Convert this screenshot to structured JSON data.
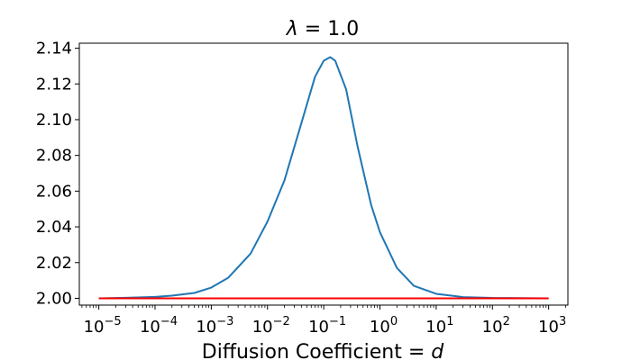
{
  "chart_data": {
    "type": "line",
    "title": "λ =  1.0",
    "title_symbol": "λ",
    "title_rest": " =  1.0",
    "xlabel": "Diffusion Coefficient = ",
    "xlabel_var": "d",
    "xscale": "log",
    "xlim": [
      4.5e-06,
      2200
    ],
    "ylim": [
      1.9962,
      2.1428
    ],
    "grid": false,
    "x_ticks": [
      {
        "value": 1e-05,
        "base": "10",
        "exp": "−5"
      },
      {
        "value": 0.0001,
        "base": "10",
        "exp": "−4"
      },
      {
        "value": 0.001,
        "base": "10",
        "exp": "−3"
      },
      {
        "value": 0.01,
        "base": "10",
        "exp": "−2"
      },
      {
        "value": 0.1,
        "base": "10",
        "exp": "−1"
      },
      {
        "value": 1,
        "base": "10",
        "exp": "0"
      },
      {
        "value": 10,
        "base": "10",
        "exp": "1"
      },
      {
        "value": 100,
        "base": "10",
        "exp": "2"
      },
      {
        "value": 1000,
        "base": "10",
        "exp": "3"
      }
    ],
    "y_ticks": [
      {
        "value": 2.0,
        "label": "2.00"
      },
      {
        "value": 2.02,
        "label": "2.02"
      },
      {
        "value": 2.04,
        "label": "2.04"
      },
      {
        "value": 2.06,
        "label": "2.06"
      },
      {
        "value": 2.08,
        "label": "2.08"
      },
      {
        "value": 2.1,
        "label": "2.10"
      },
      {
        "value": 2.12,
        "label": "2.12"
      },
      {
        "value": 2.14,
        "label": "2.14"
      }
    ],
    "series": [
      {
        "color": "#1f77b4",
        "points": [
          [
            1e-05,
            2.0
          ],
          [
            3e-05,
            2.0003
          ],
          [
            0.0001,
            2.0008
          ],
          [
            0.0002,
            2.0015
          ],
          [
            0.0005,
            2.003
          ],
          [
            0.001,
            2.006
          ],
          [
            0.002,
            2.0115
          ],
          [
            0.005,
            2.025
          ],
          [
            0.01,
            2.043
          ],
          [
            0.02,
            2.066
          ],
          [
            0.04,
            2.098
          ],
          [
            0.07,
            2.124
          ],
          [
            0.1,
            2.133
          ],
          [
            0.13,
            2.135
          ],
          [
            0.16,
            2.133
          ],
          [
            0.25,
            2.117
          ],
          [
            0.4,
            2.085
          ],
          [
            0.7,
            2.052
          ],
          [
            1,
            2.037
          ],
          [
            2,
            2.017
          ],
          [
            4,
            2.007
          ],
          [
            10,
            2.0025
          ],
          [
            30,
            2.0007
          ],
          [
            100,
            2.0002
          ],
          [
            1000,
            2.0
          ]
        ]
      },
      {
        "color": "#ff0000",
        "points": [
          [
            1e-05,
            2.0
          ],
          [
            1000,
            2.0
          ]
        ]
      }
    ]
  }
}
